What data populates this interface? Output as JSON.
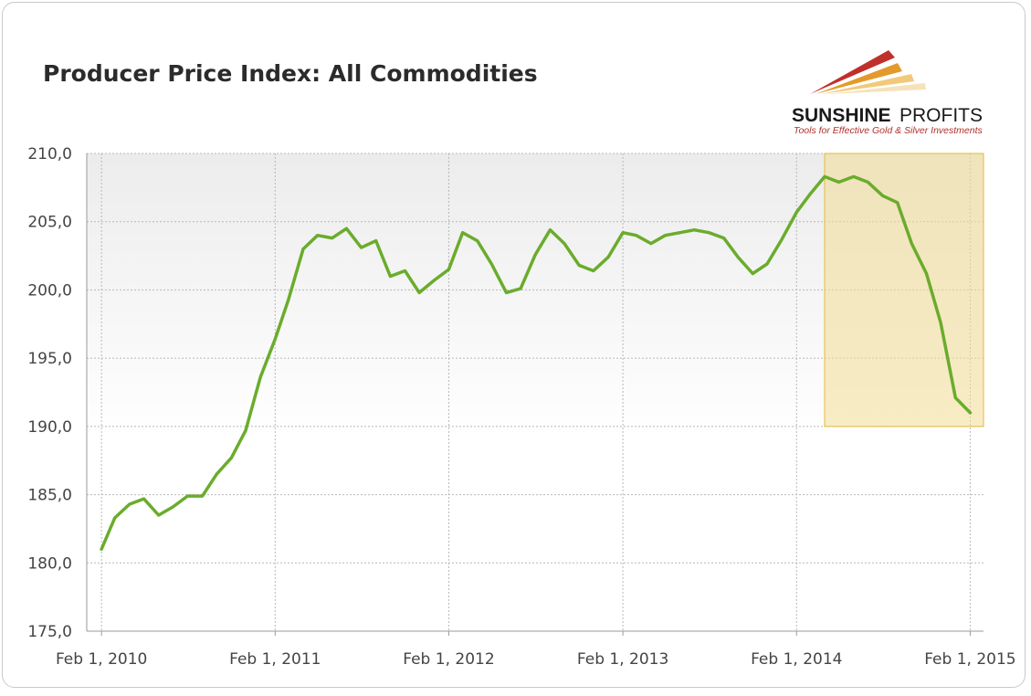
{
  "colors": {
    "line": "#6aac2c",
    "highlight_fill": "#f3dc96",
    "highlight_stroke": "#e7b93a",
    "grid": "#b8b8b8",
    "plot_bg_top": "#ececec",
    "plot_bg_bottom": "#ffffff",
    "logo_red": "#c0302a",
    "logo_orange": "#e49a2a"
  },
  "logo": {
    "brand_bold": "SUNSHINE",
    "brand_regular": "PROFITS",
    "tagline": "Tools for Effective Gold & Silver Investments"
  },
  "chart_data": {
    "type": "line",
    "title": "Producer Price Index: All Commodities",
    "xlabel": "",
    "ylabel": "",
    "ylim": [
      175,
      210
    ],
    "yticks": [
      175,
      180,
      185,
      190,
      195,
      200,
      205,
      210
    ],
    "ytick_labels": [
      "175,0",
      "180,0",
      "185,0",
      "190,0",
      "195,0",
      "200,0",
      "205,0",
      "210,0"
    ],
    "xticks": [
      "2010-02-01",
      "2011-02-01",
      "2012-02-01",
      "2013-02-01",
      "2014-02-01",
      "2015-02-01"
    ],
    "xtick_labels": [
      "Feb 1, 2010",
      "Feb 1, 2011",
      "Feb 1, 2012",
      "Feb 1, 2013",
      "Feb 1, 2014",
      "Feb 1, 2015"
    ],
    "xlim": [
      "2010-01-01",
      "2015-03-01"
    ],
    "grid": true,
    "legend": "none",
    "highlight": {
      "x_start": "2014-04-01",
      "x_end": "2015-03-01",
      "y_start": 190,
      "y_end": 210
    },
    "series": [
      {
        "x": [
          "2010-02-01",
          "2010-03-01",
          "2010-04-01",
          "2010-05-01",
          "2010-06-01",
          "2010-07-01",
          "2010-08-01",
          "2010-09-01",
          "2010-10-01",
          "2010-11-01",
          "2010-12-01",
          "2011-01-01",
          "2011-02-01",
          "2011-03-01",
          "2011-04-01",
          "2011-05-01",
          "2011-06-01",
          "2011-07-01",
          "2011-08-01",
          "2011-09-01",
          "2011-10-01",
          "2011-11-01",
          "2011-12-01",
          "2012-01-01",
          "2012-02-01",
          "2012-03-01",
          "2012-04-01",
          "2012-05-01",
          "2012-06-01",
          "2012-07-01",
          "2012-08-01",
          "2012-09-01",
          "2012-10-01",
          "2012-11-01",
          "2012-12-01",
          "2013-01-01",
          "2013-02-01",
          "2013-03-01",
          "2013-04-01",
          "2013-05-01",
          "2013-06-01",
          "2013-07-01",
          "2013-08-01",
          "2013-09-01",
          "2013-10-01",
          "2013-11-01",
          "2013-12-01",
          "2014-01-01",
          "2014-02-01",
          "2014-03-01",
          "2014-04-01",
          "2014-05-01",
          "2014-06-01",
          "2014-07-01",
          "2014-08-01",
          "2014-09-01",
          "2014-10-01",
          "2014-11-01",
          "2014-12-01",
          "2015-01-01",
          "2015-02-01"
        ],
        "values": [
          181.0,
          183.3,
          184.3,
          184.7,
          183.5,
          184.1,
          184.9,
          184.9,
          186.5,
          187.7,
          189.7,
          193.6,
          196.4,
          199.3,
          203.0,
          204.0,
          203.8,
          204.5,
          203.1,
          203.6,
          201.0,
          201.4,
          199.8,
          200.7,
          201.5,
          204.2,
          203.6,
          201.9,
          199.8,
          200.1,
          202.6,
          204.4,
          203.4,
          201.8,
          201.4,
          202.4,
          204.2,
          204.0,
          203.4,
          204.0,
          204.2,
          204.4,
          204.2,
          203.8,
          202.4,
          201.2,
          201.9,
          203.7,
          205.7,
          207.0,
          208.3,
          207.9,
          208.3,
          207.9,
          206.9,
          206.4,
          203.4,
          201.2,
          197.6,
          192.1,
          191.0
        ]
      }
    ]
  }
}
